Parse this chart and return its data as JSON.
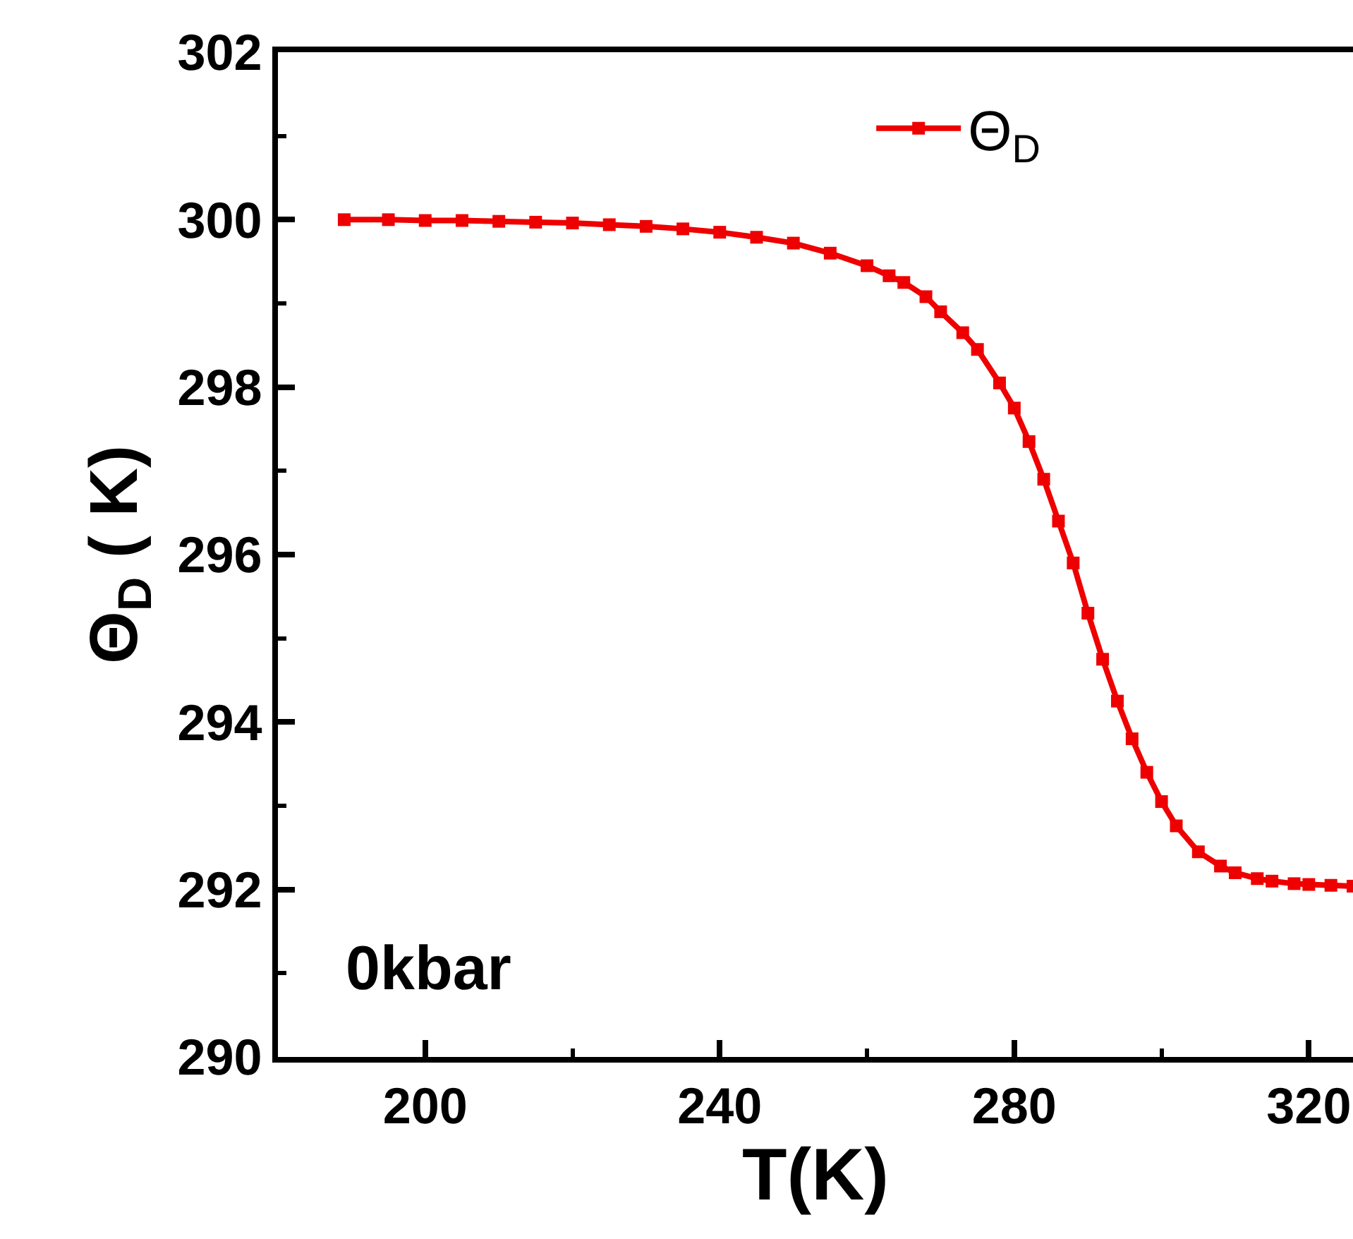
{
  "chart_data": {
    "type": "line",
    "xlabel": "T(K)",
    "ylabel": "Θ$_{D}$ ( K)",
    "annotations": [
      "0kbar"
    ],
    "x": [
      189,
      195,
      200,
      205,
      210,
      215,
      220,
      225,
      230,
      235,
      240,
      245,
      250,
      255,
      260,
      263,
      265,
      268,
      270,
      273,
      275,
      278,
      280,
      282,
      284,
      286,
      288,
      290,
      292,
      294,
      296,
      298,
      300,
      302,
      305,
      308,
      310,
      313,
      315,
      318,
      320,
      323,
      326
    ],
    "series": [
      {
        "name": "Θ$_{D}$",
        "color": "#ee0000",
        "values": [
          300.0,
          300.0,
          299.99,
          299.99,
          299.98,
          299.97,
          299.96,
          299.94,
          299.92,
          299.89,
          299.85,
          299.79,
          299.72,
          299.6,
          299.45,
          299.33,
          299.25,
          299.08,
          298.9,
          298.65,
          298.45,
          298.05,
          297.75,
          297.35,
          296.9,
          296.4,
          295.9,
          295.3,
          294.75,
          294.25,
          293.8,
          293.4,
          293.05,
          292.76,
          292.45,
          292.28,
          292.2,
          292.13,
          292.1,
          292.07,
          292.06,
          292.05,
          292.04
        ]
      }
    ],
    "xlim": [
      180,
      326
    ],
    "xticks": [
      200,
      240,
      280,
      320
    ],
    "ylim": [
      290,
      302
    ],
    "yticks": [
      290,
      292,
      294,
      296,
      298,
      300,
      302
    ],
    "grid": false,
    "legend": "top right",
    "marker": "square",
    "line_style": "solid"
  }
}
